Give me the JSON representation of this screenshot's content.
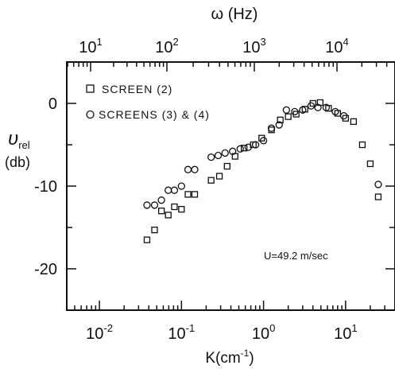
{
  "chart_data": {
    "type": "scatter",
    "x_axis": {
      "label_main": "K",
      "label_unit": "(cm",
      "label_exp": "-1",
      "label_close": ")",
      "scale": "log",
      "range": [
        0.004,
        40
      ],
      "ticks": [
        {
          "base": "10",
          "exp": "-2"
        },
        {
          "base": "10",
          "exp": "-1"
        },
        {
          "base": "10",
          "exp": "0"
        },
        {
          "base": "10",
          "exp": "1"
        }
      ]
    },
    "top_axis": {
      "label": "ω (Hz)",
      "scale": "log",
      "ticks": [
        {
          "base": "10",
          "exp": "1"
        },
        {
          "base": "10",
          "exp": "2"
        },
        {
          "base": "10",
          "exp": "3"
        },
        {
          "base": "10",
          "exp": "4"
        }
      ]
    },
    "y_axis": {
      "label_symbol": "υ",
      "label_sub": "rel",
      "label_unit": "(db)",
      "range": [
        -25,
        5
      ],
      "ticks": [
        "0",
        "-10",
        "-20"
      ],
      "tick_values": [
        0,
        -10,
        -20
      ]
    },
    "annotation": "U=49.2 m/sec",
    "series": [
      {
        "name": "SCREEN (2)",
        "marker": "square",
        "points": [
          [
            0.038,
            -16.5
          ],
          [
            0.047,
            -15.3
          ],
          [
            0.057,
            -13.0
          ],
          [
            0.069,
            -13.5
          ],
          [
            0.082,
            -12.5
          ],
          [
            0.1,
            -12.8
          ],
          [
            0.12,
            -11.0
          ],
          [
            0.145,
            -11.0
          ],
          [
            0.23,
            -9.3
          ],
          [
            0.29,
            -8.8
          ],
          [
            0.36,
            -7.6
          ],
          [
            0.45,
            -6.4
          ],
          [
            0.58,
            -5.4
          ],
          [
            0.75,
            -5.0
          ],
          [
            0.95,
            -4.2
          ],
          [
            1.25,
            -3.2
          ],
          [
            1.6,
            -2.0
          ],
          [
            2.0,
            -1.6
          ],
          [
            2.5,
            -1.3
          ],
          [
            3.2,
            -0.7
          ],
          [
            4.0,
            0.0
          ],
          [
            4.9,
            0.1
          ],
          [
            6.2,
            -0.6
          ],
          [
            8.0,
            -1.2
          ],
          [
            10.0,
            -1.8
          ],
          [
            12.5,
            -2.2
          ],
          [
            16.0,
            -5.0
          ],
          [
            20.0,
            -7.3
          ],
          [
            25.0,
            -11.3
          ]
        ]
      },
      {
        "name": "SCREENS (3) & (4)",
        "marker": "circle",
        "points": [
          [
            0.038,
            -12.3
          ],
          [
            0.047,
            -12.3
          ],
          [
            0.057,
            -11.7
          ],
          [
            0.069,
            -10.5
          ],
          [
            0.082,
            -10.5
          ],
          [
            0.1,
            -10.0
          ],
          [
            0.12,
            -8.0
          ],
          [
            0.145,
            -8.0
          ],
          [
            0.23,
            -6.5
          ],
          [
            0.28,
            -6.3
          ],
          [
            0.34,
            -6.0
          ],
          [
            0.42,
            -5.8
          ],
          [
            0.52,
            -5.5
          ],
          [
            0.65,
            -5.3
          ],
          [
            0.8,
            -5.0
          ],
          [
            1.0,
            -4.5
          ],
          [
            1.25,
            -3.0
          ],
          [
            1.55,
            -2.6
          ],
          [
            1.9,
            -0.8
          ],
          [
            2.4,
            -1.0
          ],
          [
            3.0,
            -0.8
          ],
          [
            3.8,
            -0.3
          ],
          [
            4.6,
            -0.5
          ],
          [
            5.8,
            -0.5
          ],
          [
            7.5,
            -1.0
          ],
          [
            9.5,
            -1.5
          ],
          [
            25.0,
            -9.8
          ]
        ]
      }
    ],
    "legend_placement": "top-left",
    "grid": false
  }
}
